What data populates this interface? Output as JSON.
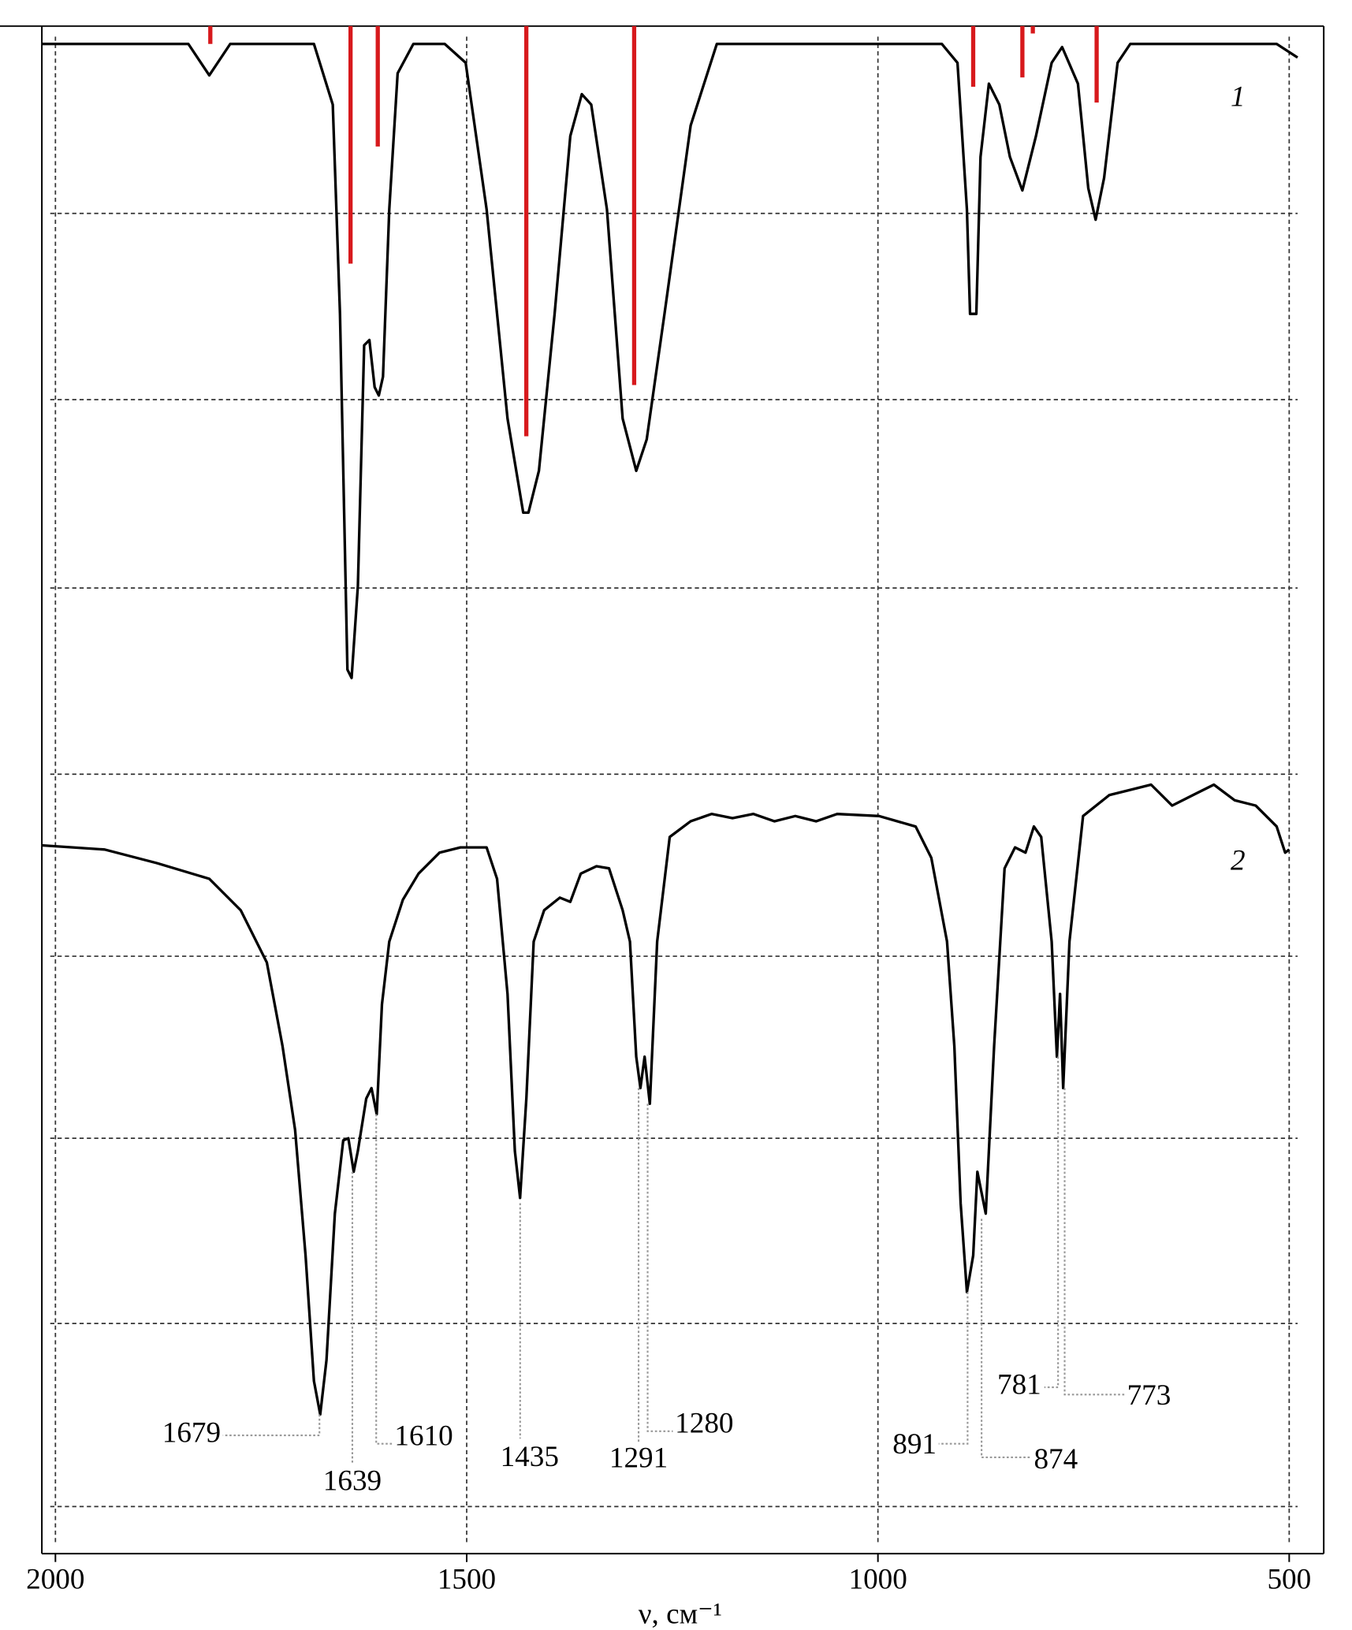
{
  "chart_data": {
    "type": "line",
    "x_label": "ν, см⁻¹",
    "xlim": [
      2016.5,
      458
    ],
    "xticks": [
      2000,
      1500,
      1000,
      500
    ],
    "ylim": [
      0,
      146
    ],
    "yticks": [
      128.1,
      110.3,
      92.3,
      74.5,
      57.1,
      39.7,
      22,
      4.5
    ],
    "grid": true,
    "series": [
      {
        "name": "1",
        "color": "#000000",
        "x": [
          2016.5,
          1838.4,
          1813,
          1787.5,
          1685.7,
          1662.8,
          1654,
          1645,
          1639.9,
          1632.3,
          1624.7,
          1618.3,
          1611.9,
          1606.9,
          1601.8,
          1594.1,
          1583.9,
          1564.9,
          1526.7,
          1501.3,
          1475.8,
          1450.4,
          1431.3,
          1424.9,
          1412.2,
          1393.1,
          1374,
          1360,
          1348.6,
          1329.5,
          1310.4,
          1293.9,
          1281.1,
          1259.5,
          1227.7,
          1195.9,
          922.4,
          903.3,
          891.8,
          888,
          880.4,
          875.3,
          865.1,
          852.4,
          839.6,
          824.4,
          807.9,
          788.8,
          776,
          756.9,
          744.2,
          735.3,
          725.1,
          708.6,
          693.3,
          515.2,
          489.8
        ],
        "values": [
          144.3,
          144.3,
          141.3,
          144.3,
          144.3,
          138.5,
          118.5,
          84.5,
          83.7,
          92.5,
          115.5,
          116,
          111.5,
          110.7,
          112.5,
          128.5,
          141.5,
          144.3,
          144.3,
          142.5,
          128.5,
          108.5,
          99.5,
          99.5,
          103.5,
          118.5,
          135.5,
          139.5,
          138.5,
          128.5,
          108.5,
          103.5,
          106.5,
          118.5,
          136.5,
          144.3,
          144.3,
          142.5,
          128.5,
          118.5,
          118.5,
          133.5,
          140.5,
          138.5,
          133.5,
          130.3,
          135.5,
          142.5,
          144,
          140.5,
          130.5,
          127.5,
          131.5,
          142.5,
          144.3,
          144.3,
          143
        ]
      },
      {
        "name": "2",
        "color": "#000000",
        "x": [
          2016.5,
          1940.2,
          1876.6,
          1813,
          1774.8,
          1743,
          1723.9,
          1708.6,
          1695.9,
          1685.7,
          1678.1,
          1670.5,
          1660.3,
          1650.1,
          1643.8,
          1637.4,
          1632.3,
          1622.1,
          1615.8,
          1609.4,
          1603,
          1594.1,
          1577.6,
          1558.5,
          1533.1,
          1507.6,
          1475.8,
          1463.1,
          1450.4,
          1441.5,
          1435.1,
          1427.5,
          1418.6,
          1405.8,
          1386.7,
          1374,
          1361.3,
          1342.2,
          1326.9,
          1310.4,
          1301.5,
          1293.9,
          1288.8,
          1283.7,
          1277.3,
          1268.4,
          1253.1,
          1227.7,
          1202.3,
          1176.8,
          1151.4,
          1125.9,
          1100.5,
          1075,
          1049.6,
          998.7,
          954.2,
          935.1,
          916,
          907.1,
          899.5,
          891.8,
          884.2,
          879.1,
          874,
          868.9,
          858.8,
          846,
          833.3,
          820.6,
          810.4,
          801.5,
          788.8,
          782.4,
          778.6,
          774.8,
          767.1,
          750.6,
          718.8,
          693.3,
          667.9,
          642.4,
          617,
          591.6,
          566.1,
          540.7,
          515.2,
          505,
          500
        ],
        "values": [
          67.7,
          67.3,
          66,
          64.5,
          61.5,
          56.5,
          48.5,
          40.5,
          28.5,
          16.5,
          13.3,
          18.5,
          32.5,
          39.5,
          39.7,
          36.5,
          38.5,
          43.5,
          44.5,
          42,
          52.5,
          58.5,
          62.5,
          65,
          67,
          67.5,
          67.5,
          64.5,
          53.5,
          38.5,
          34,
          43.5,
          58.5,
          61.5,
          62.7,
          62.3,
          65,
          65.7,
          65.5,
          61.5,
          58.5,
          47.5,
          44.5,
          47.5,
          43,
          58.5,
          68.5,
          70,
          70.7,
          70.3,
          70.7,
          70,
          70.5,
          70,
          70.7,
          70.5,
          69.5,
          66.5,
          58.5,
          48.5,
          33.5,
          25,
          28.5,
          36.5,
          34.5,
          32.5,
          48.5,
          65.5,
          67.5,
          67,
          69.5,
          68.5,
          58.5,
          47.5,
          53.5,
          44.5,
          58.5,
          70.5,
          72.5,
          73,
          73.5,
          71.5,
          72.5,
          73.5,
          72,
          71.5,
          69.5,
          67,
          67.3
        ]
      }
    ],
    "sticks": {
      "color": "#d7191c",
      "x": [
        1811.7,
        1641.2,
        1608.1,
        1427.5,
        1296.4,
        884.2,
        824.4,
        811.7,
        734.1
      ],
      "values": [
        144.3,
        123.3,
        134.5,
        106.8,
        111.7,
        140.2,
        141.1,
        145.3,
        138.7
      ]
    },
    "peak_labels": [
      1679,
      1639,
      1610,
      1435,
      1291,
      1280,
      891,
      874,
      781,
      773
    ]
  }
}
